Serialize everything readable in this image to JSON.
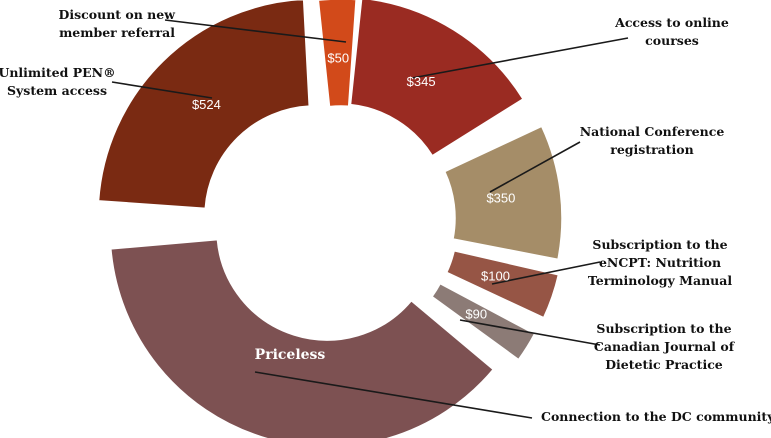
{
  "chart_data": {
    "type": "pie",
    "title": "",
    "unit": "$",
    "slices": [
      {
        "label": "Discount on new member referral",
        "value": 50,
        "value_label": "$50",
        "color": "#d24a1a"
      },
      {
        "label": "Access to online courses",
        "value": 345,
        "value_label": "$345",
        "color": "#9a2b22"
      },
      {
        "label": "National Conference registration",
        "value": 350,
        "value_label": "$350",
        "color": "#a58d68"
      },
      {
        "label": "Subscription to the eNCPT: Nutrition Terminology Manual",
        "value": 100,
        "value_label": "$100",
        "color": "#965545"
      },
      {
        "label": "Subscription to the Canadian Journal of Dietetic Practice",
        "value": 90,
        "value_label": "$90",
        "color": "#8c7b76"
      },
      {
        "label": "Connection to the DC community",
        "value": null,
        "value_label": "Priceless",
        "color": "#7d5152"
      },
      {
        "label": "Unlimited PEN® System access",
        "value": 524,
        "value_label": "$524",
        "color": "#7a2a12"
      }
    ]
  }
}
